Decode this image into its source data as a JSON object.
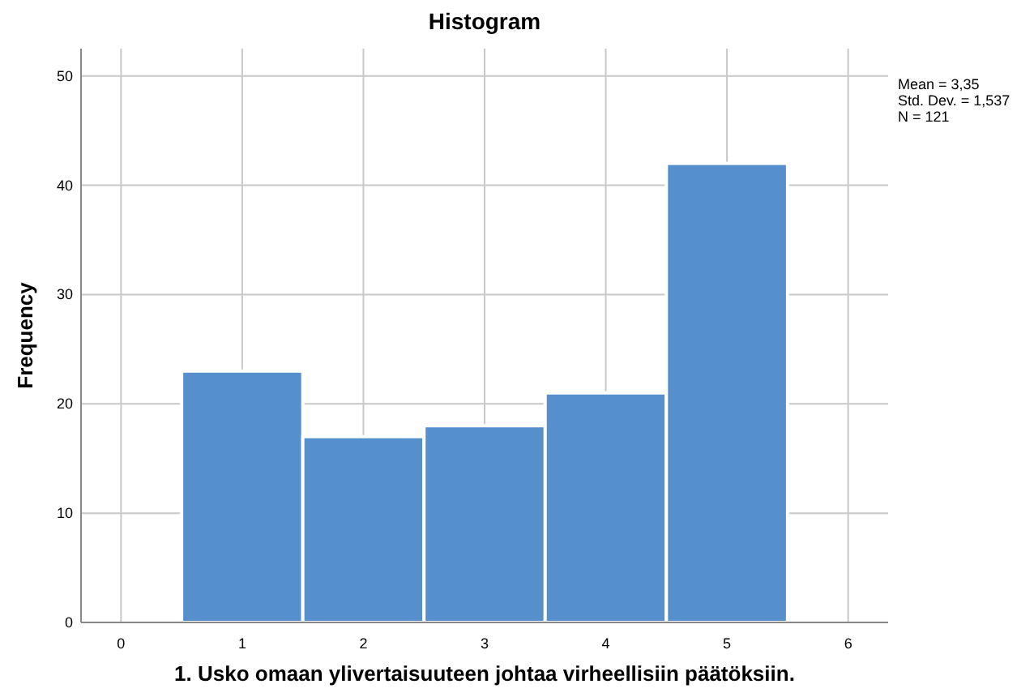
{
  "chart_data": {
    "type": "histogram",
    "title": "Histogram",
    "xlabel": "1. Usko omaan ylivertaisuuteen johtaa virheellisiin päätöksiin.",
    "ylabel": "Frequency",
    "bins": [
      0.5,
      1.5,
      2.5,
      3.5,
      4.5,
      5.5
    ],
    "values": [
      23,
      17,
      18,
      21,
      42
    ],
    "color": "#5590cc",
    "xlim": [
      -0.33,
      6.33
    ],
    "xticks": [
      0,
      1,
      2,
      3,
      4,
      5,
      6
    ],
    "ylim": [
      0,
      52.5
    ],
    "yticks": [
      0,
      10,
      20,
      30,
      40,
      50
    ],
    "grid": true,
    "annotations": [
      "Mean = 3,35",
      "Std. Dev. = 1,537",
      "N = 121"
    ]
  }
}
